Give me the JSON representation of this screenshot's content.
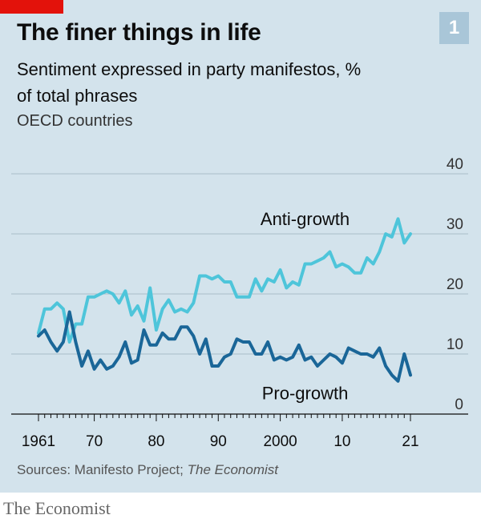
{
  "header": {
    "chart_number": "1",
    "title": "The finer things in life",
    "subtitle": "Sentiment expressed in party manifestos, % of total phrases",
    "subsubtitle": "OECD countries"
  },
  "footer": {
    "source_prefix": "Sources: Manifesto Project;",
    "source_italic": "The Economist",
    "brand": "The Economist"
  },
  "colors": {
    "panel_background": "#d3e3ec",
    "red_tag": "#e3120b",
    "anti_growth": "#4ec5da",
    "pro_growth": "#1a6698"
  },
  "chart_data": {
    "type": "line",
    "xlim": [
      1961,
      2021
    ],
    "ylim": [
      0,
      40
    ],
    "grid": true,
    "y_axis_position": "right",
    "x_ticks": [
      {
        "value": 1961,
        "label": "1961"
      },
      {
        "value": 1970,
        "label": "70"
      },
      {
        "value": 1980,
        "label": "80"
      },
      {
        "value": 1990,
        "label": "90"
      },
      {
        "value": 2000,
        "label": "2000"
      },
      {
        "value": 2010,
        "label": "10"
      },
      {
        "value": 2021,
        "label": "21"
      }
    ],
    "y_ticks": [
      {
        "value": 0,
        "label": "0"
      },
      {
        "value": 10,
        "label": "10"
      },
      {
        "value": 20,
        "label": "20"
      },
      {
        "value": 30,
        "label": "30"
      },
      {
        "value": 40,
        "label": "40"
      }
    ],
    "x": [
      1961,
      1962,
      1963,
      1964,
      1965,
      1966,
      1967,
      1968,
      1969,
      1970,
      1971,
      1972,
      1973,
      1974,
      1975,
      1976,
      1977,
      1978,
      1979,
      1980,
      1981,
      1982,
      1983,
      1984,
      1985,
      1986,
      1987,
      1988,
      1989,
      1990,
      1991,
      1992,
      1993,
      1994,
      1995,
      1996,
      1997,
      1998,
      1999,
      2000,
      2001,
      2002,
      2003,
      2004,
      2005,
      2006,
      2007,
      2008,
      2009,
      2010,
      2011,
      2012,
      2013,
      2014,
      2015,
      2016,
      2017,
      2018,
      2019,
      2020,
      2021
    ],
    "series": [
      {
        "name": "Anti-growth",
        "values": [
          13.5,
          17.5,
          17.5,
          18.5,
          17.5,
          12,
          15,
          15,
          19.5,
          19.5,
          20,
          20.5,
          20,
          18.5,
          20.5,
          16.5,
          18,
          15.5,
          21,
          14,
          17.5,
          19,
          17,
          17.5,
          17,
          18.5,
          23,
          23,
          22.5,
          23,
          22,
          22,
          19.5,
          19.5,
          19.5,
          22.5,
          20.5,
          22.5,
          22,
          24,
          21,
          22,
          21.5,
          25,
          25,
          25.5,
          26,
          27,
          24.5,
          25,
          24.5,
          23.5,
          23.5,
          26,
          25,
          27,
          30,
          29.5,
          32.5,
          28.5,
          30
        ]
      },
      {
        "name": "Pro-growth",
        "values": [
          13,
          14,
          12,
          10.5,
          12,
          17,
          12,
          8,
          10.5,
          7.5,
          9,
          7.5,
          8,
          9.5,
          12,
          8.5,
          9,
          14,
          11.5,
          11.5,
          13.5,
          12.5,
          12.5,
          14.5,
          14.5,
          13,
          10,
          12.5,
          8,
          8,
          9.5,
          10,
          12.5,
          12,
          12,
          10,
          10,
          12,
          9,
          9.5,
          9,
          9.5,
          11.5,
          9,
          9.5,
          8,
          9,
          10,
          9.5,
          8.5,
          11,
          10.5,
          10,
          10,
          9.5,
          11,
          8,
          6.5,
          5.5,
          10,
          6.5
        ]
      }
    ],
    "annotations": [
      {
        "text": "Anti-growth",
        "series": "Anti-growth",
        "x": 2004,
        "y": 31.5
      },
      {
        "text": "Pro-growth",
        "series": "Pro-growth",
        "x": 2004,
        "y": 2.5
      }
    ]
  }
}
